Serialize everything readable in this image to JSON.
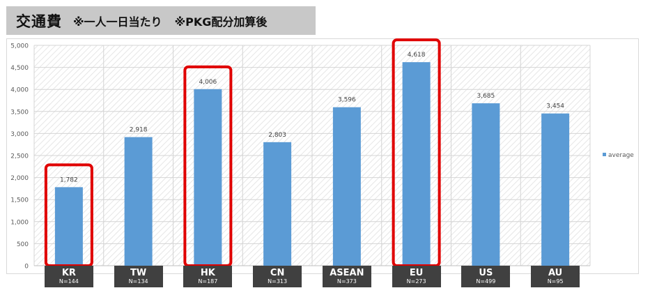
{
  "header": {
    "title": "交通費",
    "subtitle1": "※一人一日当たり",
    "subtitle2": "※PKG配分加算後"
  },
  "chart_data": {
    "type": "bar",
    "categories": [
      "KR",
      "TW",
      "HK",
      "CN",
      "ASEAN",
      "EU",
      "US",
      "AU"
    ],
    "sample_sizes": [
      "N=144",
      "N=134",
      "N=187",
      "N=313",
      "N=373",
      "N=273",
      "N=499",
      "N=95"
    ],
    "series": [
      {
        "name": "average",
        "values": [
          1782,
          2918,
          4006,
          2803,
          3596,
          4618,
          3685,
          3454
        ]
      }
    ],
    "value_labels": [
      "1,782",
      "2,918",
      "4,006",
      "2,803",
      "3,596",
      "4,618",
      "3,685",
      "3,454"
    ],
    "yticks": [
      "0",
      "500",
      "1,000",
      "1,500",
      "2,000",
      "2,500",
      "3,000",
      "3,500",
      "4,000",
      "4,500",
      "5,000"
    ],
    "ylim": [
      0,
      5000
    ],
    "highlighted": [
      "KR",
      "HK",
      "EU"
    ],
    "legend_position": "right",
    "grid": true,
    "bar_color": "#5b9bd5",
    "highlight_color": "#e00000"
  }
}
